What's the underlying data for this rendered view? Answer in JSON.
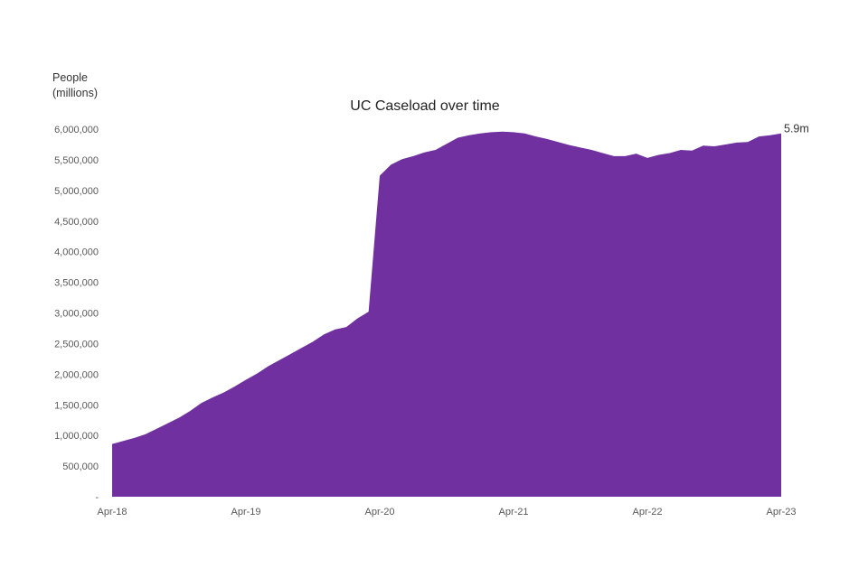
{
  "chart_data": {
    "type": "area",
    "title": "UC Caseload over time",
    "ylabel_lines": [
      "People",
      "(millions)"
    ],
    "xlabel": "",
    "color": "#7030a0",
    "ylim": [
      0,
      6000000
    ],
    "yticks": [
      {
        "value": 0,
        "label": "-"
      },
      {
        "value": 500000,
        "label": "500,000"
      },
      {
        "value": 1000000,
        "label": "1,000,000"
      },
      {
        "value": 1500000,
        "label": "1,500,000"
      },
      {
        "value": 2000000,
        "label": "2,000,000"
      },
      {
        "value": 2500000,
        "label": "2,500,000"
      },
      {
        "value": 3000000,
        "label": "3,000,000"
      },
      {
        "value": 3500000,
        "label": "3,500,000"
      },
      {
        "value": 4000000,
        "label": "4,000,000"
      },
      {
        "value": 4500000,
        "label": "4,500,000"
      },
      {
        "value": 5000000,
        "label": "5,000,000"
      },
      {
        "value": 5500000,
        "label": "5,500,000"
      },
      {
        "value": 6000000,
        "label": "6,000,000"
      }
    ],
    "xlim": [
      "2018-04",
      "2023-04"
    ],
    "xticks": [
      {
        "value": "2018-04",
        "label": "Apr-18"
      },
      {
        "value": "2019-04",
        "label": "Apr-19"
      },
      {
        "value": "2020-04",
        "label": "Apr-20"
      },
      {
        "value": "2021-04",
        "label": "Apr-21"
      },
      {
        "value": "2022-04",
        "label": "Apr-22"
      },
      {
        "value": "2023-04",
        "label": "Apr-23"
      }
    ],
    "annotation": {
      "text": "5.9m",
      "at": "2023-04"
    },
    "series": [
      {
        "x": [
          "2018-04",
          "2018-05",
          "2018-06",
          "2018-07",
          "2018-08",
          "2018-09",
          "2018-10",
          "2018-11",
          "2018-12",
          "2019-01",
          "2019-02",
          "2019-03",
          "2019-04",
          "2019-05",
          "2019-06",
          "2019-07",
          "2019-08",
          "2019-09",
          "2019-10",
          "2019-11",
          "2019-12",
          "2020-01",
          "2020-02",
          "2020-03",
          "2020-04",
          "2020-05",
          "2020-06",
          "2020-07",
          "2020-08",
          "2020-09",
          "2020-10",
          "2020-11",
          "2020-12",
          "2021-01",
          "2021-02",
          "2021-03",
          "2021-04",
          "2021-05",
          "2021-06",
          "2021-07",
          "2021-08",
          "2021-09",
          "2021-10",
          "2021-11",
          "2021-12",
          "2022-01",
          "2022-02",
          "2022-03",
          "2022-04",
          "2022-05",
          "2022-06",
          "2022-07",
          "2022-08",
          "2022-09",
          "2022-10",
          "2022-11",
          "2022-12",
          "2023-01",
          "2023-02",
          "2023-03",
          "2023-04"
        ],
        "y": [
          860000,
          910000,
          960000,
          1020000,
          1110000,
          1200000,
          1290000,
          1400000,
          1530000,
          1620000,
          1700000,
          1800000,
          1910000,
          2010000,
          2130000,
          2230000,
          2330000,
          2430000,
          2530000,
          2650000,
          2730000,
          2770000,
          2910000,
          3020000,
          5240000,
          5420000,
          5510000,
          5560000,
          5620000,
          5660000,
          5760000,
          5860000,
          5900000,
          5930000,
          5950000,
          5960000,
          5950000,
          5930000,
          5880000,
          5840000,
          5790000,
          5740000,
          5700000,
          5660000,
          5610000,
          5560000,
          5560000,
          5600000,
          5530000,
          5580000,
          5610000,
          5660000,
          5650000,
          5730000,
          5720000,
          5750000,
          5780000,
          5790000,
          5880000,
          5900000,
          5930000
        ]
      }
    ]
  }
}
